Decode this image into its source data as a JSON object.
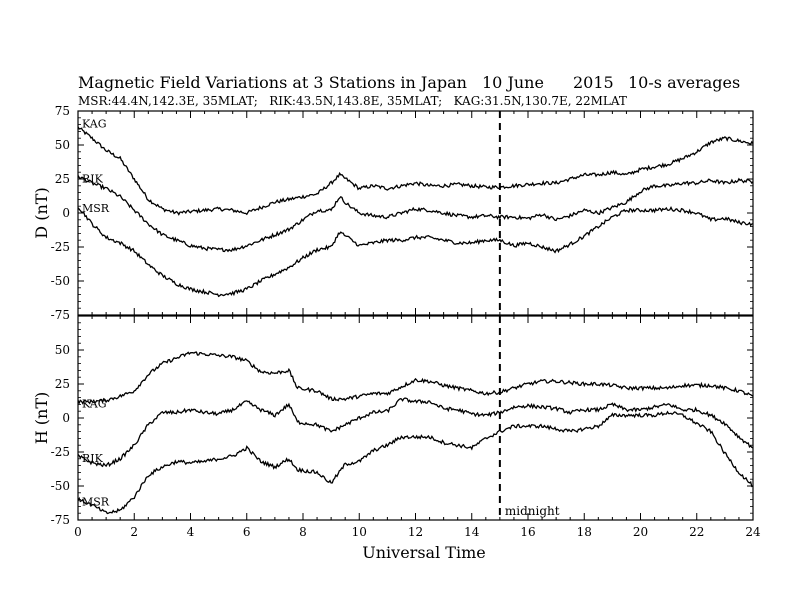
{
  "header": {
    "title": "Magnetic Field Variations at 3 Stations in Japan",
    "date": "10 June",
    "year": "2015",
    "averaging": "10-s averages",
    "stations_line": "MSR:44.4N,142.3E, 35MLAT;   RIK:43.5N,143.8E, 35MLAT;   KAG:31.5N,130.7E, 22MLAT"
  },
  "chart_data": [
    {
      "type": "line",
      "panel": "D",
      "ylabel": "D (nT)",
      "ylim": [
        -75,
        75
      ],
      "yticks": [
        "75",
        "50",
        "25",
        "0",
        "-25",
        "-50",
        "-75"
      ],
      "ytick_values": [
        75,
        50,
        25,
        0,
        -25,
        -50,
        -75
      ],
      "xlim": [
        0,
        24
      ],
      "series": [
        {
          "name": "KAG",
          "color": "#000000",
          "x": [
            0,
            0.5,
            1,
            1.5,
            2,
            2.5,
            3,
            3.5,
            4,
            4.5,
            5,
            5.5,
            6,
            6.5,
            7,
            7.5,
            8,
            8.5,
            9,
            9.3,
            9.6,
            10,
            10.5,
            11,
            11.5,
            12,
            12.5,
            13,
            13.5,
            14,
            14.5,
            15,
            15.5,
            16,
            16.5,
            17,
            17.5,
            18,
            18.5,
            19,
            19.5,
            20,
            20.5,
            21,
            21.5,
            22,
            22.5,
            23,
            23.5,
            24
          ],
          "y": [
            63,
            55,
            46,
            40,
            25,
            10,
            3,
            0,
            1,
            2,
            3,
            2,
            0,
            4,
            8,
            10,
            12,
            14,
            22,
            28,
            24,
            18,
            20,
            18,
            20,
            22,
            20,
            20,
            21,
            20,
            19,
            19,
            20,
            21,
            22,
            22,
            25,
            28,
            28,
            30,
            28,
            32,
            34,
            36,
            40,
            45,
            52,
            55,
            53,
            51
          ]
        },
        {
          "name": "RIK",
          "color": "#000000",
          "x": [
            0,
            0.5,
            1,
            1.5,
            2,
            2.5,
            3,
            3.5,
            4,
            4.5,
            5,
            5.5,
            6,
            6.5,
            7,
            7.5,
            8,
            8.5,
            9,
            9.3,
            9.6,
            10,
            10.5,
            11,
            11.5,
            12,
            12.5,
            13,
            13.5,
            14,
            14.5,
            15,
            15.5,
            16,
            16.5,
            17,
            17.5,
            18,
            18.5,
            19,
            19.5,
            20,
            20.5,
            21,
            21.5,
            22,
            22.5,
            23,
            23.5,
            24
          ],
          "y": [
            27,
            22,
            18,
            12,
            2,
            -8,
            -16,
            -20,
            -24,
            -26,
            -27,
            -27,
            -24,
            -20,
            -16,
            -12,
            -5,
            2,
            2,
            12,
            6,
            0,
            -2,
            -3,
            0,
            3,
            2,
            0,
            -2,
            -3,
            -2,
            -3,
            -3,
            -4,
            -1,
            -5,
            -2,
            2,
            0,
            4,
            8,
            16,
            20,
            20,
            22,
            22,
            24,
            22,
            24,
            23
          ]
        },
        {
          "name": "MSR",
          "color": "#000000",
          "x": [
            0,
            0.5,
            1,
            1.5,
            2,
            2.5,
            3,
            3.5,
            4,
            4.5,
            5,
            5.5,
            6,
            6.5,
            7,
            7.5,
            8,
            8.5,
            9,
            9.3,
            9.6,
            10,
            10.5,
            11,
            11.5,
            12,
            12.5,
            13,
            13.5,
            14,
            14.5,
            15,
            15.5,
            16,
            16.5,
            17,
            17.5,
            18,
            18.5,
            19,
            19.5,
            20,
            20.5,
            21,
            21.5,
            22,
            22.5,
            23,
            23.5,
            24
          ],
          "y": [
            5,
            -8,
            -18,
            -22,
            -28,
            -38,
            -46,
            -52,
            -56,
            -58,
            -60,
            -59,
            -56,
            -50,
            -45,
            -40,
            -33,
            -27,
            -25,
            -14,
            -18,
            -24,
            -22,
            -20,
            -20,
            -18,
            -18,
            -20,
            -22,
            -22,
            -20,
            -20,
            -24,
            -22,
            -25,
            -28,
            -23,
            -17,
            -10,
            -3,
            2,
            2,
            2,
            3,
            2,
            0,
            -5,
            -4,
            -7,
            -8
          ]
        }
      ]
    },
    {
      "type": "line",
      "panel": "H",
      "ylabel": "H (nT)",
      "xlabel": "Universal Time",
      "ylim": [
        -75,
        75
      ],
      "yticks": [
        "50",
        "25",
        "0",
        "-25",
        "-50",
        "-75"
      ],
      "ytick_values": [
        50,
        25,
        0,
        -25,
        -50,
        -75
      ],
      "xlim": [
        0,
        24
      ],
      "xticks": [
        "0",
        "2",
        "4",
        "6",
        "8",
        "10",
        "12",
        "14",
        "16",
        "18",
        "20",
        "22",
        "24"
      ],
      "xtick_values": [
        0,
        2,
        4,
        6,
        8,
        10,
        12,
        14,
        16,
        18,
        20,
        22,
        24
      ],
      "annotation": {
        "x": 15,
        "label": "midnight"
      },
      "series": [
        {
          "name": "KAG",
          "color": "#000000",
          "x": [
            0,
            0.5,
            1,
            1.5,
            2,
            2.5,
            3,
            3.5,
            4,
            4.5,
            5,
            5.5,
            6,
            6.5,
            7,
            7.5,
            7.8,
            8.5,
            9,
            9.5,
            10,
            10.5,
            11,
            11.5,
            12,
            12.5,
            13,
            13.5,
            14,
            14.5,
            15,
            15.5,
            16,
            16.5,
            17,
            17.5,
            18,
            18.5,
            19,
            19.5,
            20,
            20.5,
            21,
            21.5,
            22,
            22.5,
            23,
            23.5,
            24
          ],
          "y": [
            12,
            12,
            13,
            16,
            20,
            32,
            40,
            44,
            48,
            47,
            46,
            45,
            42,
            34,
            33,
            35,
            22,
            20,
            14,
            14,
            16,
            18,
            18,
            23,
            28,
            27,
            24,
            22,
            20,
            18,
            19,
            22,
            25,
            27,
            27,
            26,
            25,
            25,
            24,
            22,
            22,
            22,
            22,
            24,
            24,
            24,
            22,
            20,
            16
          ]
        },
        {
          "name": "RIK",
          "color": "#000000",
          "x": [
            0,
            0.5,
            1,
            1.5,
            2,
            2.5,
            3,
            3.5,
            4,
            4.5,
            5,
            5.5,
            6,
            6.5,
            7,
            7.5,
            7.8,
            8.5,
            9,
            9.5,
            10,
            10.5,
            11,
            11.5,
            12,
            12.5,
            13,
            13.5,
            14,
            14.5,
            15,
            15.5,
            16,
            16.5,
            17,
            17.5,
            18,
            18.5,
            19,
            19.5,
            20,
            20.5,
            21,
            21.5,
            22,
            22.5,
            23,
            23.5,
            24
          ],
          "y": [
            -28,
            -33,
            -35,
            -30,
            -20,
            -5,
            4,
            4,
            6,
            4,
            3,
            6,
            12,
            6,
            2,
            10,
            -3,
            -5,
            -10,
            -5,
            0,
            4,
            5,
            14,
            12,
            12,
            7,
            6,
            3,
            2,
            4,
            8,
            9,
            8,
            7,
            4,
            6,
            6,
            10,
            6,
            6,
            8,
            10,
            6,
            6,
            2,
            -4,
            -14,
            -22
          ]
        },
        {
          "name": "MSR",
          "color": "#000000",
          "x": [
            0,
            0.5,
            1,
            1.5,
            2,
            2.5,
            3,
            3.5,
            4,
            4.5,
            5,
            5.5,
            6,
            6.5,
            7,
            7.5,
            7.8,
            8.5,
            9,
            9.5,
            10,
            10.5,
            11,
            11.5,
            12,
            12.5,
            13,
            13.5,
            14,
            14.5,
            15,
            15.5,
            16,
            16.5,
            17,
            17.5,
            18,
            18.5,
            19,
            19.5,
            20,
            20.5,
            21,
            21.5,
            22,
            22.5,
            23,
            23.5,
            24
          ],
          "y": [
            -60,
            -64,
            -70,
            -68,
            -58,
            -42,
            -36,
            -32,
            -33,
            -32,
            -30,
            -28,
            -22,
            -32,
            -36,
            -30,
            -38,
            -40,
            -48,
            -34,
            -32,
            -24,
            -20,
            -14,
            -14,
            -14,
            -18,
            -20,
            -22,
            -15,
            -10,
            -6,
            -6,
            -6,
            -8,
            -10,
            -8,
            -6,
            2,
            2,
            2,
            2,
            4,
            2,
            -4,
            -10,
            -26,
            -40,
            -50
          ]
        }
      ]
    }
  ]
}
